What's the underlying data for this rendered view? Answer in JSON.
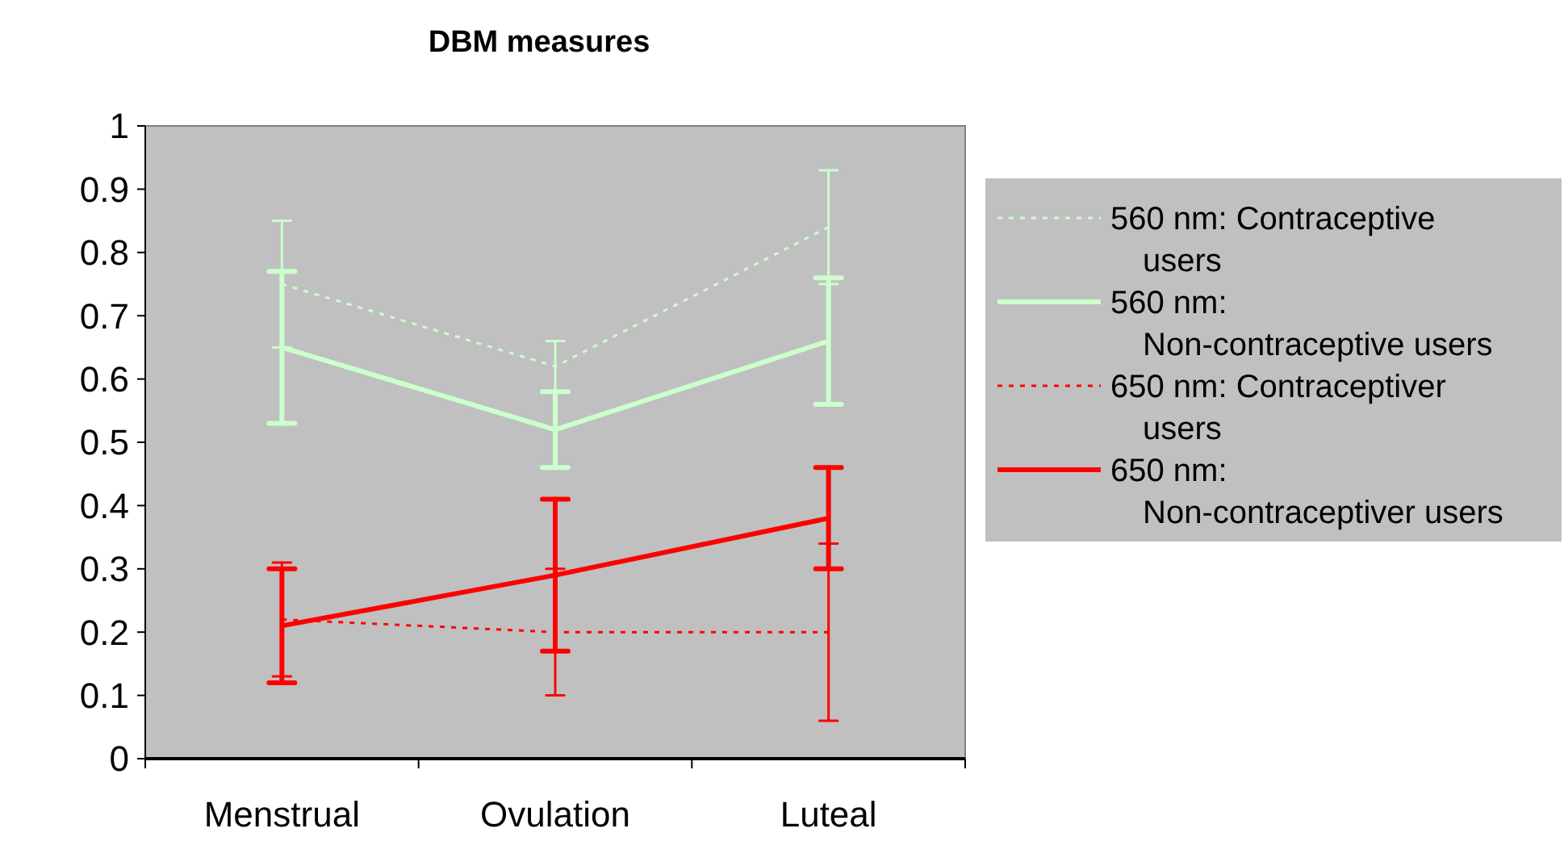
{
  "chart_data": {
    "type": "line",
    "title": "DBM measures",
    "categories": [
      "Menstrual",
      "Ovulation",
      "Luteal"
    ],
    "ylim": [
      0,
      1
    ],
    "yticks": [
      0,
      {
        "value": 0.1,
        "label": "0.1"
      },
      {
        "value": 0.2,
        "label": "0.2"
      },
      {
        "value": 0.3,
        "label": "0.3"
      },
      {
        "value": 0.4,
        "label": "0.4"
      },
      {
        "value": 0.5,
        "label": "0.5"
      },
      {
        "value": 0.6,
        "label": "0.6"
      },
      {
        "value": 0.7,
        "label": "0.7"
      },
      {
        "value": 0.8,
        "label": "0.8"
      },
      {
        "value": 0.9,
        "label": "0.9"
      },
      1
    ],
    "grid": false,
    "legend": "right",
    "marker": "none",
    "series": [
      {
        "name": "560 nm: Contraceptive users",
        "color": "#ccffcc",
        "line_style": "dotted",
        "values": [
          0.75,
          0.62,
          0.84
        ],
        "errors": [
          0.1,
          0.04,
          0.09
        ]
      },
      {
        "name": "560 nm: Non-contraceptive users",
        "color": "#ccffcc",
        "line_style": "solid",
        "values": [
          0.65,
          0.52,
          0.66
        ],
        "errors": [
          0.12,
          0.06,
          0.1
        ]
      },
      {
        "name": "650 nm: Contraceptiver users",
        "color": "#ff0000",
        "line_style": "dotted",
        "values": [
          0.22,
          0.2,
          0.2
        ],
        "errors": [
          0.09,
          0.1,
          0.14
        ]
      },
      {
        "name": "650 nm: Non-contraceptiver users",
        "color": "#ff0000",
        "line_style": "solid",
        "values": [
          0.21,
          0.29,
          0.38
        ],
        "errors": [
          0.09,
          0.12,
          0.08
        ]
      }
    ]
  }
}
